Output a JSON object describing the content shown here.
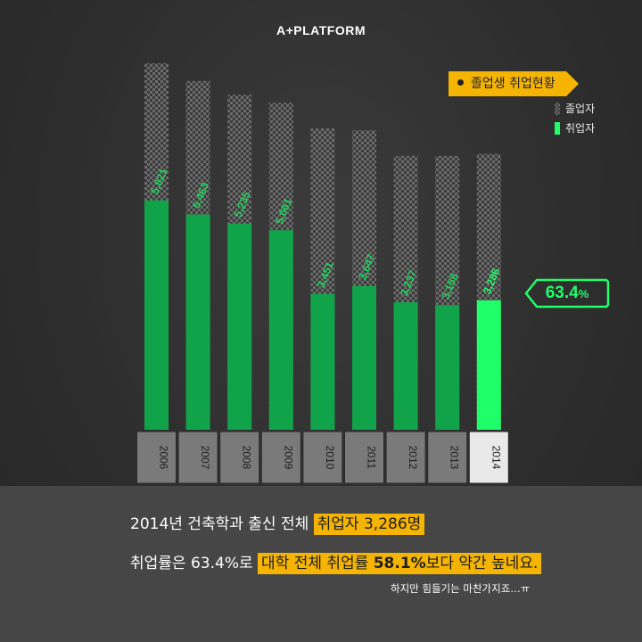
{
  "header": {
    "brand": "A+PLATFORM"
  },
  "legend": {
    "title": "졸업생 취업현황",
    "graduates_label": "졸업자",
    "employed_label": "취업자"
  },
  "callout": {
    "value": "63.4",
    "unit": "%"
  },
  "chart_data": {
    "type": "bar",
    "categories": [
      "2006",
      "2007",
      "2008",
      "2009",
      "2010",
      "2011",
      "2012",
      "2013",
      "2014"
    ],
    "series": [
      {
        "name": "졸업자",
        "values": [
          9300,
          8850,
          8500,
          8300,
          7650,
          7600,
          6950,
          6950,
          7000
        ]
      },
      {
        "name": "취업자",
        "values": [
          5821,
          5463,
          5235,
          5061,
          3451,
          3647,
          3237,
          3158,
          3286
        ]
      }
    ],
    "data_labels": [
      "5,821",
      "5,463",
      "5,235",
      "5,061",
      "3,451",
      "3,647",
      "3,237",
      "3,158",
      "3,286"
    ],
    "highlight_category": "2014",
    "colors": {
      "employed": "#11a34a",
      "employed_highlight": "#1fff6a",
      "label": "#22d35f",
      "label_highlight": "#1fff6a",
      "axis_box": "#7a7a7a",
      "axis_box_highlight": "#e9e9e9"
    },
    "ylim": [
      0,
      10000
    ]
  },
  "caption": {
    "line1_prefix": "2014년 건축학과 출신 전체",
    "line1_highlight": "취업자 3,286명",
    "line2_prefix": "취업률은 63.4%로",
    "line2_highlight_a": "대학 전체 취업률",
    "line2_highlight_b": "58.1%",
    "line2_highlight_c": "보다 약간 높네요.",
    "note": "하지만 힘들기는 마찬가지죠…ㅠ"
  }
}
